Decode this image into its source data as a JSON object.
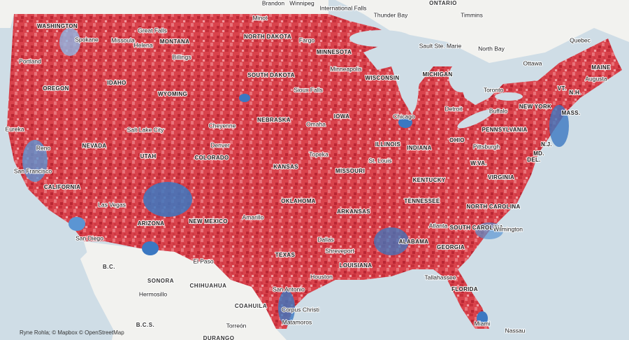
{
  "labels": {
    "states": [
      "WASHINGTON",
      "MONTANA",
      "NORTH DAKOTA",
      "MINNESOTA",
      "SOUTH DAKOTA",
      "OREGON",
      "IDAHO",
      "WYOMING",
      "WISCONSIN",
      "MICHIGAN",
      "IOWA",
      "NEBRASKA",
      "NEVADA",
      "UTAH",
      "COLORADO",
      "KANSAS",
      "MISSOURI",
      "ILLINOIS",
      "INDIANA",
      "OHIO",
      "PENNSYLVANIA",
      "NEW YORK",
      "MAINE",
      "VT.",
      "N.H.",
      "MASS.",
      "N.J.",
      "MD.",
      "DEL.",
      "W.VA.",
      "VIRGINIA",
      "KENTUCKY",
      "TENNESSEE",
      "NORTH CAROLINA",
      "SOUTH CAROLINA",
      "GEORGIA",
      "ALABAMA",
      "ARKANSAS",
      "OKLAHOMA",
      "TEXAS",
      "LOUISIANA",
      "NEW MEXICO",
      "ARIZONA",
      "CALIFORNIA",
      "FLORIDA"
    ],
    "regions": [
      "ONTARIO",
      "SONORA",
      "CHIHUAHUA",
      "COAHUILA",
      "DURANGO",
      "B.C.",
      "B.C.S."
    ],
    "cities": [
      "Brandon",
      "Winnipeg",
      "International Falls",
      "Thunder Bay",
      "Timmins",
      "Great Falls",
      "Spokane",
      "Missoula",
      "Helena",
      "Minot",
      "Fargo",
      "Sault Ste. Marie",
      "North Bay",
      "Ottawa",
      "Quebec",
      "Portland",
      "Billings",
      "Minneapolis",
      "Augusta",
      "Toronto",
      "Sioux Falls",
      "Detroit",
      "Buffalo",
      "Chicago",
      "Eureka",
      "Cheyenne",
      "Omaha",
      "Salt Lake City",
      "Denver",
      "Pittsburgh",
      "Reno",
      "Topeka",
      "St. Louis",
      "San Francisco",
      "Las Vegas",
      "Amarillo",
      "Atlanta",
      "Wilmington",
      "San Diego",
      "Dallas",
      "Shreveport",
      "El Paso",
      "Houston",
      "Tallahassee",
      "San Antonio",
      "Hermosillo",
      "Corpus Christi",
      "Matamoros",
      "Torreón",
      "Miami",
      "Nassau"
    ]
  },
  "attribution": "Ryne Rohla; © Mapbox © OpenStreetMap"
}
